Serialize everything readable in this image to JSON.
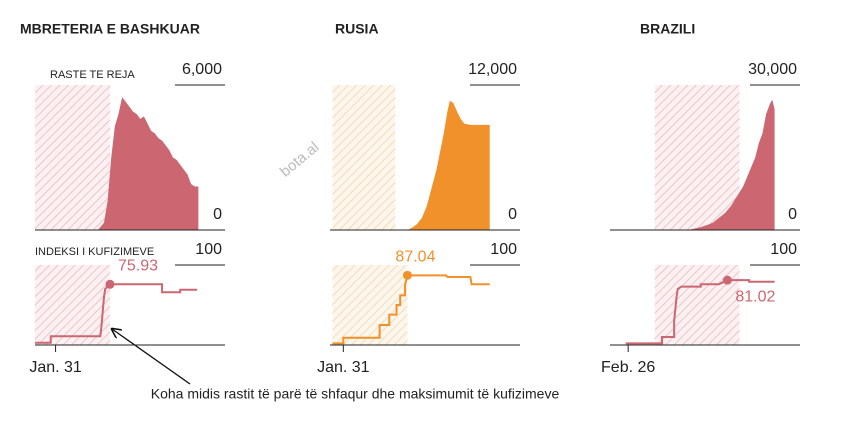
{
  "watermark": "bota.al",
  "chart_data": [
    {
      "type": "area",
      "title": "MBRETERIA E BASHKUAR",
      "label": "RASTE TE REJA",
      "color": "#cc6670",
      "x": [
        35,
        40,
        43,
        46,
        49,
        52,
        55,
        58,
        61,
        64,
        67,
        70,
        73,
        76,
        79,
        82,
        85,
        88,
        91,
        94,
        97,
        100,
        103,
        106,
        109,
        112,
        115,
        118
      ],
      "values": [
        0,
        300,
        1200,
        3000,
        4300,
        4800,
        5500,
        5300,
        5100,
        4900,
        4800,
        4600,
        4700,
        4400,
        4100,
        4000,
        3800,
        3700,
        3500,
        3300,
        3000,
        2900,
        2700,
        2500,
        2300,
        1900,
        1800,
        1800
      ],
      "xlim": [
        -17,
        140
      ],
      "ylim": [
        0,
        6000
      ],
      "yticks": [
        0,
        {
          "value": 6000,
          "label": "6,000"
        }
      ],
      "highlight_x": [
        -17,
        45
      ]
    },
    {
      "type": "line",
      "label": "INDEKSI I KUFIZIMEVE",
      "color": "#cc6670",
      "x": [
        -17,
        -4,
        -4,
        37,
        38,
        40,
        41,
        43,
        45,
        88,
        88,
        103,
        103,
        117
      ],
      "values": [
        2.8,
        2.8,
        11,
        11,
        25,
        60,
        70,
        73,
        75.93,
        75.93,
        66,
        66,
        69,
        69
      ],
      "xlim": [
        -17,
        140
      ],
      "ylim": [
        0,
        100
      ],
      "yticks": [
        100
      ],
      "xticks": [
        {
          "value": 0,
          "label": "Jan. 31"
        }
      ],
      "highlight_x": [
        -17,
        45
      ],
      "point": {
        "x": 45,
        "value": 75.93
      },
      "annotation": "Koha midis rastit të parë të shfaqur dhe maksimumit të kufizimeve"
    },
    {
      "type": "area",
      "title": "RUSIA",
      "color": "#f0912c",
      "x": [
        53,
        57,
        61,
        65,
        69,
        73,
        77,
        80,
        83,
        86,
        88,
        91,
        94,
        97,
        100,
        105,
        110,
        115,
        121
      ],
      "values": [
        0,
        200,
        500,
        1000,
        2000,
        3500,
        5000,
        6500,
        8000,
        9800,
        10700,
        10500,
        9800,
        9200,
        8800,
        8700,
        8700,
        8700,
        8700
      ],
      "xlim": [
        -11,
        146
      ],
      "ylim": [
        0,
        12000
      ],
      "yticks": [
        0,
        {
          "value": 12000,
          "label": "12,000"
        }
      ],
      "highlight_x": [
        -9,
        43
      ]
    },
    {
      "type": "line",
      "color": "#f0912c",
      "x": [
        -9,
        0,
        0,
        30,
        30,
        38,
        38,
        44,
        44,
        47,
        47,
        51,
        51,
        53,
        85,
        86,
        105,
        106,
        121
      ],
      "values": [
        2,
        2,
        9,
        9,
        25,
        25,
        38,
        38,
        50,
        50,
        62,
        62,
        75,
        87.04,
        87.04,
        85,
        85,
        76,
        76
      ],
      "xlim": [
        -11,
        146
      ],
      "ylim": [
        0,
        100
      ],
      "yticks": [
        100
      ],
      "xticks": [
        {
          "value": 0,
          "label": "Jan. 31"
        }
      ],
      "highlight_x": [
        -9,
        53
      ],
      "point": {
        "x": 53,
        "value": 87.04
      }
    },
    {
      "type": "area",
      "title": "BRAZILI",
      "color": "#cc6670",
      "x": [
        50,
        55,
        60,
        65,
        70,
        75,
        80,
        85,
        90,
        95,
        100,
        105,
        108,
        111,
        114,
        117,
        119,
        121
      ],
      "values": [
        0,
        300,
        600,
        1000,
        1500,
        2500,
        3500,
        5000,
        7000,
        9000,
        12000,
        15000,
        18000,
        20000,
        24000,
        26000,
        27000,
        25000
      ],
      "xlim": [
        -15,
        142
      ],
      "ylim": [
        0,
        30000
      ],
      "yticks": [
        0,
        {
          "value": 30000,
          "label": "30,000"
        }
      ],
      "highlight_x": [
        22,
        92
      ]
    },
    {
      "type": "line",
      "color": "#cc6670",
      "x": [
        -2,
        28,
        28,
        38,
        38,
        40,
        41,
        44,
        60,
        60,
        75,
        82,
        100,
        100,
        121
      ],
      "values": [
        2,
        2,
        10,
        10,
        30,
        60,
        70,
        73,
        73,
        76,
        76,
        81.02,
        81.02,
        79,
        79
      ],
      "xlim": [
        -15,
        142
      ],
      "ylim": [
        0,
        100
      ],
      "yticks": [
        100
      ],
      "xticks": [
        {
          "value": 0,
          "label": "Feb. 26"
        }
      ],
      "highlight_x": [
        22,
        92
      ],
      "point": {
        "x": 82,
        "value": 81.02
      }
    }
  ]
}
